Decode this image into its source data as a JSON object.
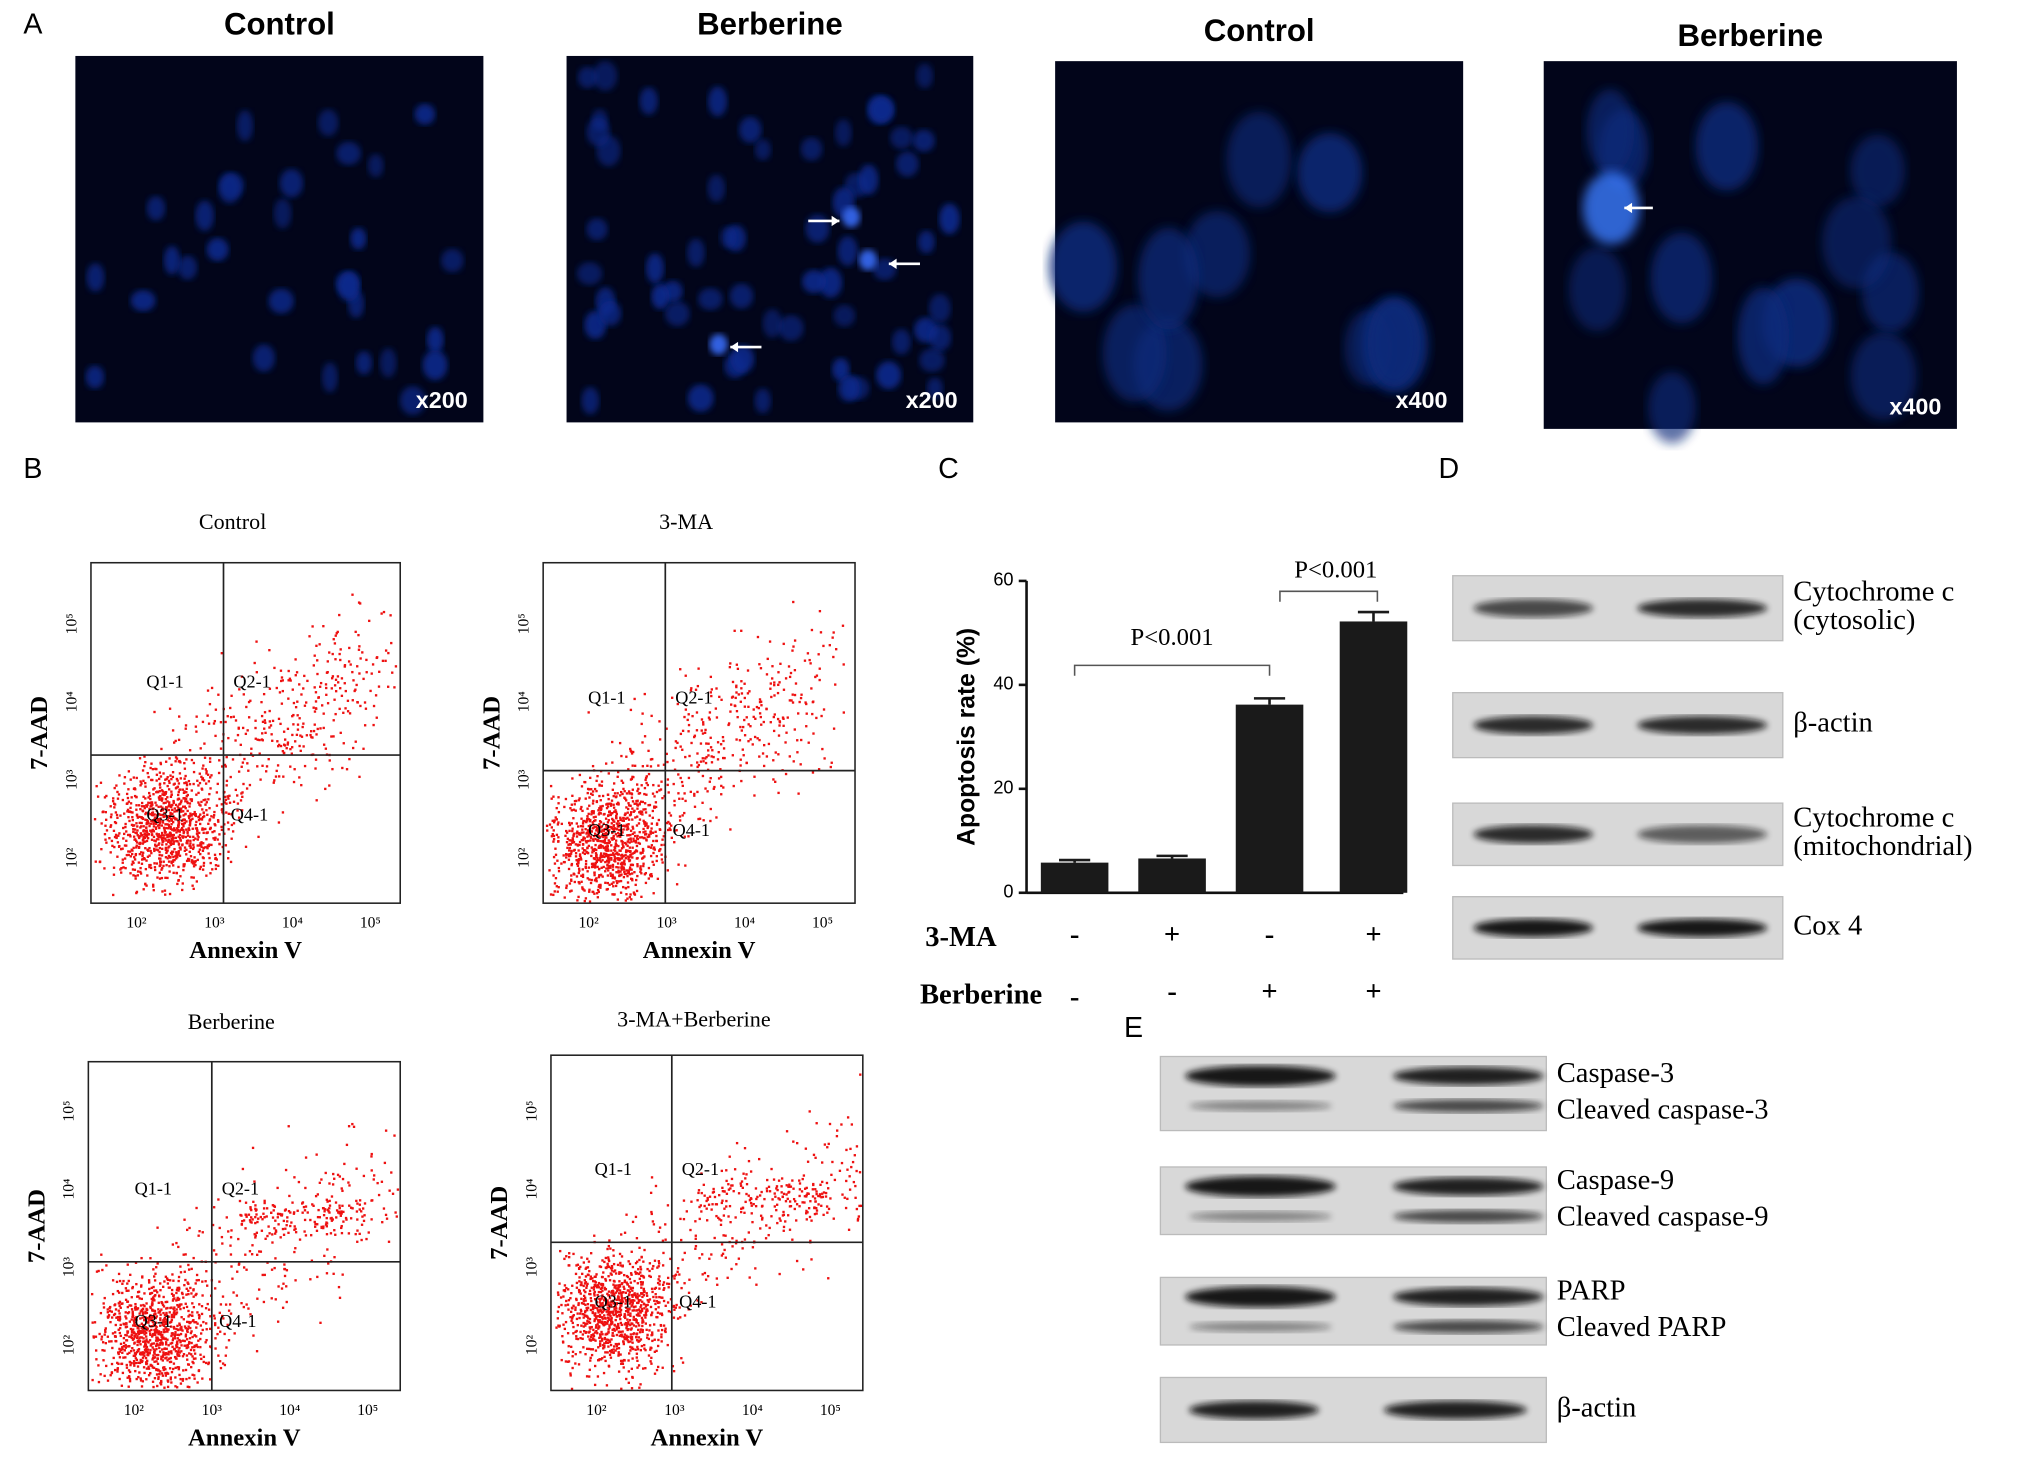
{
  "panel_labels": [
    "A",
    "B",
    "C",
    "D",
    "E"
  ],
  "panel_a": {
    "images": [
      {
        "title": "Control",
        "magnification": "x200"
      },
      {
        "title": "Berberine",
        "magnification": "x200"
      },
      {
        "title": "Control",
        "magnification": "x400"
      },
      {
        "title": "Berberine",
        "magnification": "x400"
      }
    ]
  },
  "panel_b": {
    "x_label": "Annexin V",
    "y_label": "7-AAD",
    "ticks": [
      "10²",
      "10³",
      "10⁴",
      "10⁵"
    ],
    "quadrants": [
      "Q1-1",
      "Q2-1",
      "Q3-1",
      "Q4-1"
    ],
    "plots": [
      {
        "title": "Control"
      },
      {
        "title": "3-MA"
      },
      {
        "title": "Berberine"
      },
      {
        "title": "3-MA+Berberine"
      }
    ]
  },
  "chart_data": {
    "type": "bar",
    "y_label": "Apoptosis rate (%)",
    "values": [
      5.8,
      6.6,
      36.2,
      52.2
    ],
    "errors": [
      0.5,
      0.5,
      1.2,
      1.8
    ],
    "color": "#1a1a1a",
    "ylim": [
      0,
      60
    ],
    "yticks": [
      0,
      20,
      40,
      60
    ],
    "conditions": [
      {
        "name": "3-MA",
        "signs": [
          "-",
          "+",
          "-",
          "+"
        ]
      },
      {
        "name": "Berberine",
        "signs": [
          "-",
          "-",
          "+",
          "+"
        ]
      }
    ],
    "annotations": [
      "P<0.001",
      "P<0.001"
    ]
  },
  "panel_d": {
    "blots": [
      [
        "Cytochrome c",
        "(cytosolic)"
      ],
      [
        "β-actin"
      ],
      [
        "Cytochrome c",
        "(mitochondrial)"
      ],
      [
        "Cox 4"
      ]
    ]
  },
  "panel_e": {
    "blots": [
      [
        "Caspase-3",
        "Cleaved caspase-3"
      ],
      [
        "Caspase-9",
        "Cleaved caspase-9"
      ],
      [
        "PARP",
        "Cleaved PARP"
      ],
      [
        "β-actin"
      ]
    ]
  }
}
